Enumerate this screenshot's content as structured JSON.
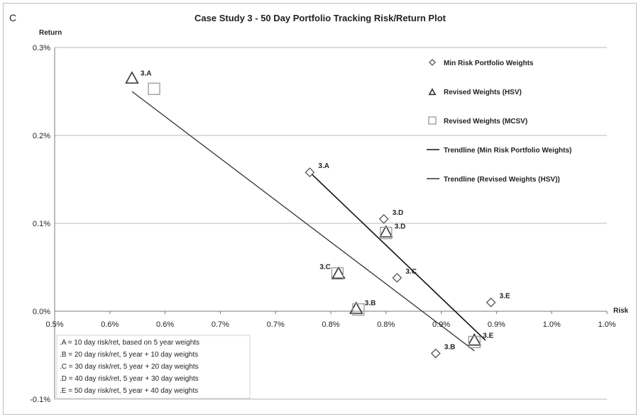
{
  "panel_letter": "C",
  "chart_data": {
    "type": "scatter",
    "title": "Case Study 3 - 50 Day Portfolio Tracking Risk/Return Plot",
    "xlabel": "Risk",
    "ylabel": "Return",
    "xlim": [
      0.5,
      1.0
    ],
    "ylim": [
      -0.1,
      0.3
    ],
    "x_ticks": [
      "0.5%",
      "0.6%",
      "0.6%",
      "0.7%",
      "0.7%",
      "0.8%",
      "0.8%",
      "0.9%",
      "0.9%",
      "1.0%",
      "1.0%"
    ],
    "x_tick_values": [
      0.5,
      0.55,
      0.6,
      0.65,
      0.7,
      0.75,
      0.8,
      0.85,
      0.9,
      0.95,
      1.0
    ],
    "y_ticks": [
      "0.3%",
      "0.2%",
      "0.1%",
      "0.0%",
      "-0.1%"
    ],
    "y_tick_values": [
      0.3,
      0.2,
      0.1,
      0.0,
      -0.1
    ],
    "grid": "horizontal",
    "legend_position": "top-right",
    "series": [
      {
        "name": "Min Risk Portfolio Weights",
        "marker": "diamond",
        "points": [
          {
            "x": 0.731,
            "y": 0.158,
            "label": "3.A"
          },
          {
            "x": 0.845,
            "y": -0.048,
            "label": "3.B"
          },
          {
            "x": 0.81,
            "y": 0.038,
            "label": "3.C"
          },
          {
            "x": 0.798,
            "y": 0.105,
            "label": "3.D"
          },
          {
            "x": 0.895,
            "y": 0.01,
            "label": "3.E"
          }
        ]
      },
      {
        "name": "Revised Weights (HSV)",
        "marker": "triangle",
        "points": [
          {
            "x": 0.57,
            "y": 0.265,
            "label": "3.A"
          },
          {
            "x": 0.773,
            "y": 0.003,
            "label": "3.B"
          },
          {
            "x": 0.757,
            "y": 0.043,
            "label": ""
          },
          {
            "x": 0.8,
            "y": 0.09,
            "label": ""
          },
          {
            "x": 0.88,
            "y": -0.033,
            "label": ""
          }
        ]
      },
      {
        "name": "Revised Weights (MCSV)",
        "marker": "square",
        "points": [
          {
            "x": 0.59,
            "y": 0.253,
            "label": ""
          },
          {
            "x": 0.775,
            "y": 0.002,
            "label": ""
          },
          {
            "x": 0.756,
            "y": 0.043,
            "label": "3.C"
          },
          {
            "x": 0.8,
            "y": 0.089,
            "label": "3.D"
          },
          {
            "x": 0.88,
            "y": -0.035,
            "label": "3.E"
          }
        ]
      }
    ],
    "trendlines": [
      {
        "name": "Trendline (Min Risk Portfolio Weights)",
        "from": [
          0.731,
          0.158
        ],
        "to": [
          0.89,
          -0.033
        ]
      },
      {
        "name": "Trendline (Revised Weights (HSV))",
        "from": [
          0.57,
          0.25
        ],
        "to": [
          0.88,
          -0.045
        ]
      }
    ],
    "legend": [
      {
        "marker": "diamond",
        "label": "Min Risk Portfolio Weights"
      },
      {
        "marker": "triangle",
        "label": "Revised Weights (HSV)"
      },
      {
        "marker": "square",
        "label": "Revised Weights (MCSV)"
      },
      {
        "marker": "line-dark",
        "label": "Trendline (Min Risk Portfolio Weights)"
      },
      {
        "marker": "line",
        "label": "Trendline (Revised Weights (HSV))"
      }
    ],
    "notes": [
      ".A = 10 day risk/ret, based on 5 year weights",
      ".B = 20 day risk/ret, 5  year + 10 day weights",
      ".C = 30 day risk/ret, 5  year + 20 day weights",
      ".D = 40 day risk/ret, 5  year + 30 day weights",
      ".E = 50 day risk/ret, 5  year + 40 day weights"
    ]
  }
}
